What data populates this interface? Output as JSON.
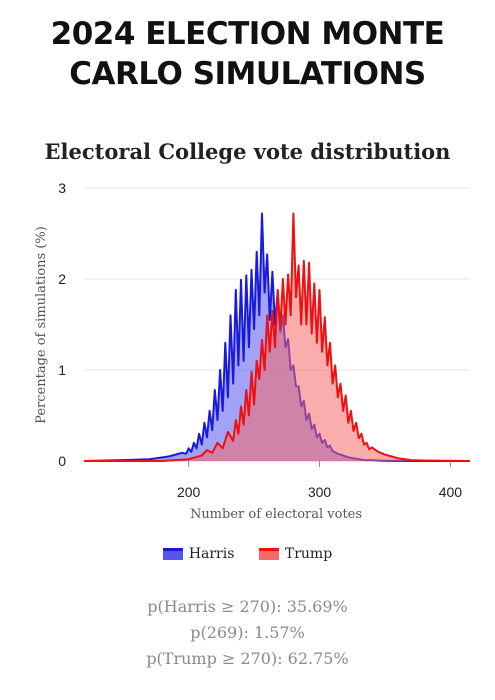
{
  "header": {
    "title_line1": "2024 ELECTION MONTE",
    "title_line2": "CARLO SIMULATIONS"
  },
  "chart_data": {
    "type": "area",
    "title": "Electoral College vote distribution",
    "xlabel": "Number of electoral votes",
    "ylabel": "Percentage of simulations (%)",
    "xlim": [
      120,
      415
    ],
    "ylim": [
      0,
      3
    ],
    "x_ticks": [
      200,
      300,
      400
    ],
    "y_ticks": [
      0,
      1,
      2,
      3
    ],
    "grid": "horizontal",
    "legend_position": "bottom",
    "series": [
      {
        "name": "Harris",
        "color": "#1a1adb",
        "fill": "#5555ee",
        "x": [
          120,
          150,
          170,
          180,
          185,
          190,
          195,
          198,
          200,
          202,
          204,
          206,
          208,
          210,
          212,
          214,
          216,
          218,
          220,
          222,
          224,
          226,
          228,
          230,
          232,
          234,
          236,
          238,
          240,
          242,
          244,
          246,
          248,
          250,
          252,
          254,
          256,
          258,
          260,
          262,
          264,
          266,
          268,
          270,
          272,
          274,
          276,
          278,
          280,
          282,
          284,
          286,
          288,
          290,
          292,
          294,
          296,
          298,
          300,
          302,
          304,
          306,
          308,
          310,
          314,
          318,
          322,
          326,
          330,
          335,
          340,
          345,
          350,
          360,
          380,
          415
        ],
        "values": [
          0,
          0.01,
          0.02,
          0.04,
          0.05,
          0.07,
          0.09,
          0.08,
          0.14,
          0.1,
          0.2,
          0.14,
          0.3,
          0.18,
          0.42,
          0.26,
          0.55,
          0.34,
          0.78,
          0.45,
          1.0,
          0.55,
          1.3,
          0.7,
          1.6,
          0.85,
          1.88,
          1.05,
          1.99,
          1.1,
          2.04,
          1.25,
          2.1,
          1.45,
          2.3,
          1.6,
          2.72,
          1.85,
          2.27,
          1.55,
          2.08,
          1.5,
          1.86,
          1.42,
          1.6,
          1.25,
          1.34,
          1.0,
          1.05,
          0.82,
          0.82,
          0.6,
          0.66,
          0.45,
          0.52,
          0.35,
          0.4,
          0.26,
          0.3,
          0.2,
          0.23,
          0.15,
          0.17,
          0.11,
          0.08,
          0.06,
          0.04,
          0.03,
          0.02,
          0.01,
          0.01,
          0.005,
          0.003,
          0.001,
          0,
          0
        ]
      },
      {
        "name": "Trump",
        "color": "#ee1111",
        "fill": "#f46a6a",
        "x": [
          120,
          180,
          190,
          200,
          205,
          210,
          214,
          218,
          222,
          226,
          230,
          234,
          236,
          238,
          240,
          242,
          244,
          246,
          248,
          250,
          252,
          254,
          256,
          258,
          260,
          262,
          264,
          266,
          268,
          270,
          272,
          274,
          276,
          278,
          280,
          282,
          284,
          286,
          288,
          290,
          292,
          294,
          296,
          298,
          300,
          302,
          304,
          306,
          308,
          310,
          312,
          314,
          316,
          318,
          320,
          322,
          324,
          326,
          328,
          330,
          332,
          334,
          336,
          338,
          340,
          345,
          350,
          355,
          360,
          370,
          380,
          415
        ],
        "values": [
          0,
          0,
          0.01,
          0.02,
          0.04,
          0.06,
          0.12,
          0.09,
          0.2,
          0.14,
          0.32,
          0.22,
          0.45,
          0.3,
          0.6,
          0.4,
          0.78,
          0.5,
          0.98,
          0.62,
          1.1,
          0.9,
          1.33,
          1.0,
          1.6,
          1.2,
          1.65,
          1.25,
          1.88,
          1.45,
          2.0,
          1.5,
          2.05,
          1.6,
          2.72,
          1.8,
          2.15,
          1.5,
          2.2,
          1.5,
          2.18,
          1.4,
          1.95,
          1.3,
          1.88,
          1.2,
          1.58,
          1.05,
          1.3,
          0.85,
          1.05,
          0.7,
          0.85,
          0.55,
          0.72,
          0.42,
          0.55,
          0.33,
          0.42,
          0.25,
          0.3,
          0.18,
          0.2,
          0.13,
          0.15,
          0.1,
          0.07,
          0.05,
          0.03,
          0.01,
          0.005,
          0
        ]
      }
    ]
  },
  "stats": [
    "p(Harris ≥ 270): 35.69%",
    "p(269): 1.57%",
    "p(Trump ≥ 270): 62.75%"
  ]
}
